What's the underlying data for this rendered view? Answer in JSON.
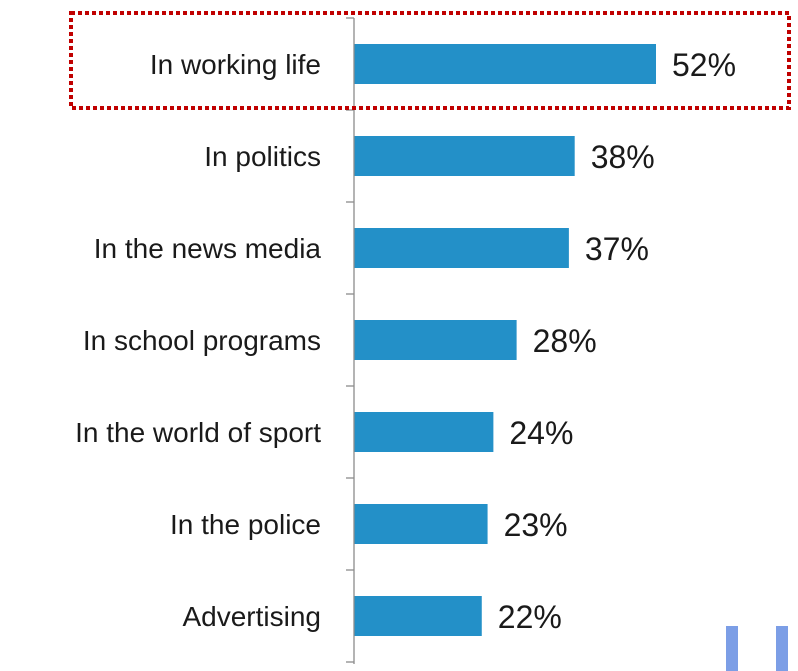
{
  "chart_data": {
    "type": "bar",
    "orientation": "horizontal",
    "categories": [
      "In working life",
      "In politics",
      "In the news media",
      "In school programs",
      "In the world of sport",
      "In the police",
      "Advertising"
    ],
    "values": [
      52,
      38,
      37,
      28,
      24,
      23,
      22
    ],
    "value_labels": [
      "52%",
      "38%",
      "37%",
      "28%",
      "24%",
      "23%",
      "22%"
    ],
    "unit": "%",
    "title": "",
    "xlabel": "",
    "ylabel": "",
    "xlim": [
      0,
      52
    ],
    "grid": false,
    "legend": "none",
    "highlighted_category": "In working life",
    "colors": {
      "bar": "#2390c8",
      "highlight": "#c00000",
      "axis": "#8c8c8c",
      "text": "#1a1a1a",
      "corner_decoration": "#7c9ee6"
    }
  }
}
